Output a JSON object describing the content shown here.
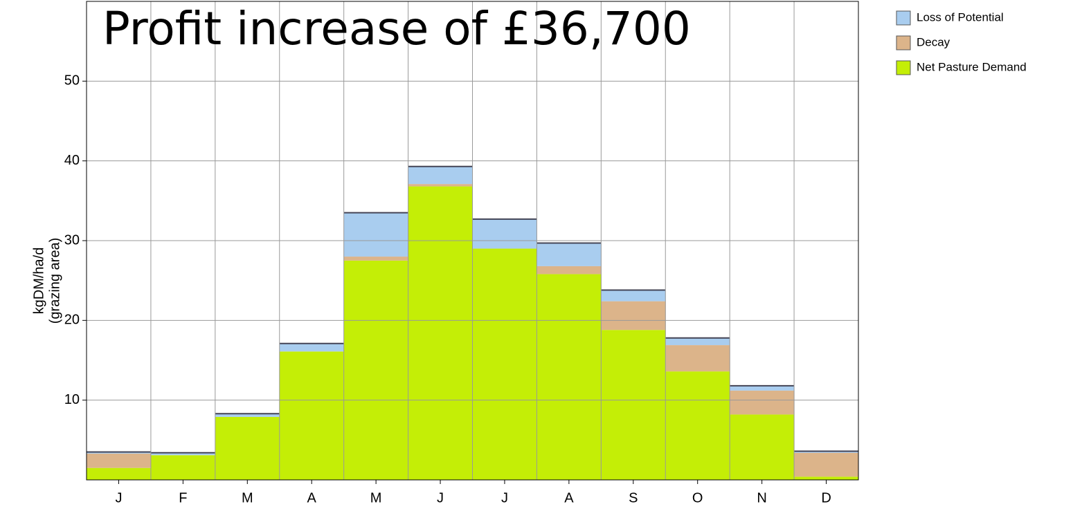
{
  "chart_data": {
    "type": "stacked_step",
    "title": "Profit increase of £36,700",
    "y_label": [
      "kgDM/ha/d",
      "(grazing area)"
    ],
    "categories": [
      "J",
      "F",
      "M",
      "A",
      "M",
      "J",
      "J",
      "A",
      "S",
      "O",
      "N",
      "D"
    ],
    "series": [
      {
        "name": "Net Pasture Demand",
        "color": "#c4ee06",
        "values": [
          1.5,
          3.1,
          7.9,
          16.1,
          27.5,
          36.8,
          29.0,
          25.8,
          18.8,
          13.6,
          8.2,
          0.4
        ]
      },
      {
        "name": "Decay",
        "color": "#dcb48a",
        "values": [
          1.8,
          0,
          0,
          0,
          0.5,
          0.3,
          0,
          1.0,
          3.6,
          3.3,
          3.0,
          3.0
        ]
      },
      {
        "name": "Loss of Potential",
        "color": "#a9cdef",
        "values": [
          0.2,
          0.3,
          0.4,
          1.0,
          5.5,
          2.2,
          3.7,
          2.9,
          1.4,
          0.9,
          0.6,
          0.2
        ]
      }
    ],
    "ylim": [
      0,
      60
    ],
    "yticks": [
      10,
      20,
      30,
      40,
      50
    ],
    "grid": true
  }
}
